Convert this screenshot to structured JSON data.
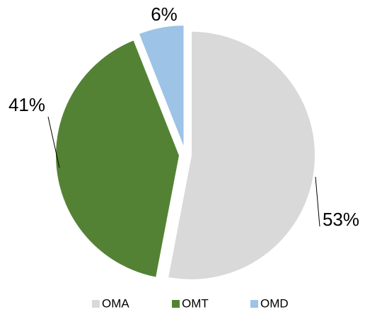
{
  "chart_data": {
    "type": "pie",
    "categories": [
      "OMA",
      "OMT",
      "OMD"
    ],
    "values": [
      53,
      41,
      6
    ],
    "value_labels": [
      "53%",
      "41%",
      "6%"
    ],
    "colors": [
      "#d9d9d9",
      "#548235",
      "#9dc3e6"
    ],
    "legend": "bottom"
  }
}
